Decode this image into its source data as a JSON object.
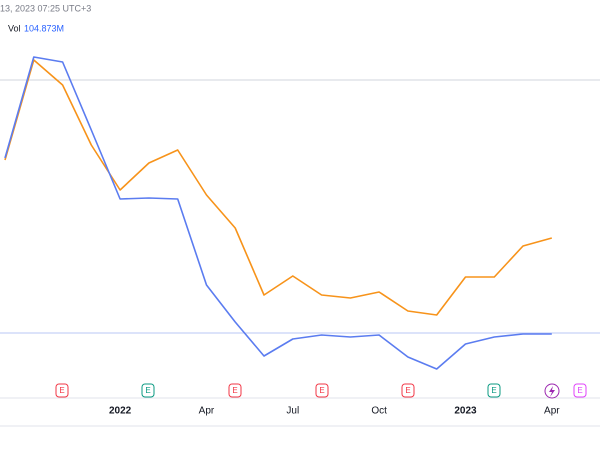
{
  "header": {
    "datetime": "13, 2023 07:25 UTC+3",
    "volume_label": "Vol",
    "volume_value": "104.873M"
  },
  "chart_data": {
    "type": "line",
    "categories": [
      null,
      null,
      null,
      null,
      "2022",
      null,
      null,
      "Apr",
      null,
      null,
      "Jul",
      null,
      null,
      "Oct",
      null,
      null,
      "2023",
      null,
      null,
      "Apr"
    ],
    "series": [
      {
        "color": "#f7931a",
        "values": [
          240,
          340,
          315,
          255,
          210,
          237,
          250,
          205,
          172,
          105,
          124,
          105,
          102,
          108,
          89,
          85,
          123,
          123,
          154,
          162
        ]
      },
      {
        "color": "#5b7cf0",
        "values": [
          242,
          343,
          338,
          270,
          201,
          202,
          201,
          115,
          78,
          44,
          61,
          65,
          63,
          65,
          43,
          31,
          56,
          63,
          66,
          66
        ]
      }
    ],
    "ylim": [
      0,
      380
    ],
    "reference_lines": [
      {
        "value": 320,
        "color": "#d1d4dc"
      },
      {
        "value": 67,
        "color": "#b8c7f5"
      }
    ],
    "events": [
      {
        "label": "E",
        "color": "#f23645"
      },
      {
        "label": "E",
        "color": "#089981"
      },
      {
        "label": "E",
        "color": "#f23645"
      },
      {
        "label": "E",
        "color": "#f23645"
      },
      {
        "label": "E",
        "color": "#f23645"
      },
      {
        "label": "E",
        "color": "#089981"
      },
      {
        "label": "E",
        "color": "#e040fb"
      }
    ]
  }
}
